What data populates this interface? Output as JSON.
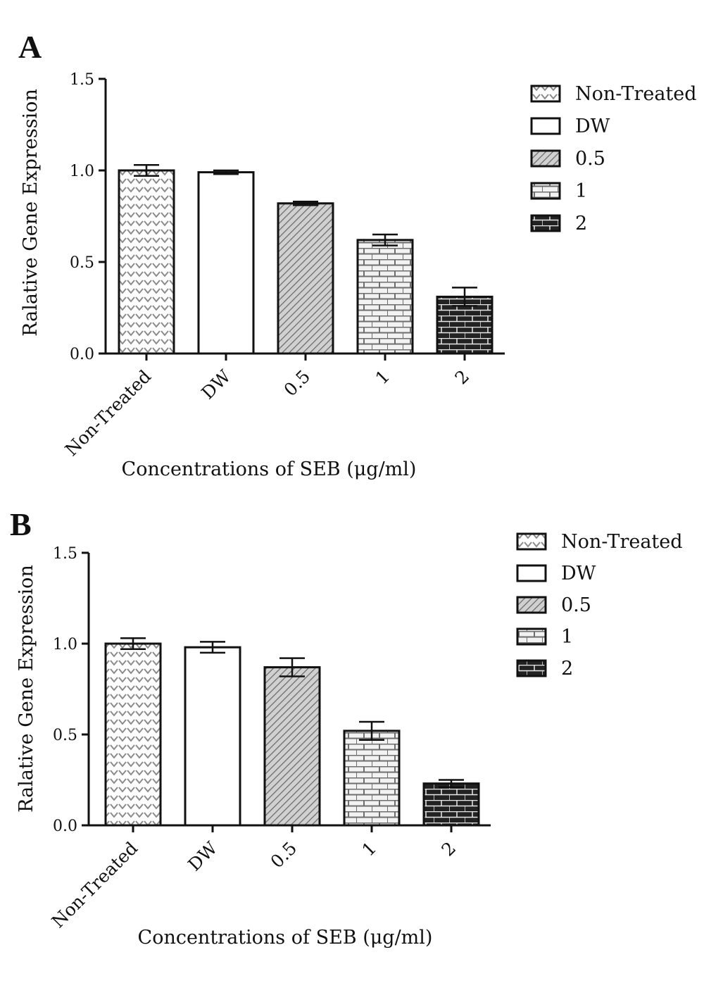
{
  "chart_data": [
    {
      "type": "bar",
      "panel_label": "A",
      "categories": [
        "Non-Treated",
        "DW",
        "0.5",
        "1",
        "2"
      ],
      "values": [
        1.0,
        0.99,
        0.82,
        0.62,
        0.31
      ],
      "errors": [
        0.03,
        0.01,
        0.01,
        0.03,
        0.05
      ],
      "xlabel": "Concentrations of SEB (μg/ml)",
      "ylabel": "Ralative Gene Expression",
      "ylim": [
        0,
        1.5
      ],
      "yticks": [
        "0.0",
        "0.5",
        "1.0",
        "1.5"
      ],
      "legend": [
        "Non-Treated",
        "DW",
        "0.5",
        "1",
        "2"
      ],
      "legend_position": "top-right",
      "grid": false
    },
    {
      "type": "bar",
      "panel_label": "B",
      "categories": [
        "Non-Treated",
        "DW",
        "0.5",
        "1",
        "2"
      ],
      "values": [
        1.0,
        0.98,
        0.87,
        0.52,
        0.23
      ],
      "errors": [
        0.03,
        0.03,
        0.05,
        0.05,
        0.02
      ],
      "xlabel": "Concentrations of SEB (μg/ml)",
      "ylabel": "Ralative Gene Expression",
      "ylim": [
        0,
        1.5
      ],
      "yticks": [
        "0.0",
        "0.5",
        "1.0",
        "1.5"
      ],
      "legend": [
        "Non-Treated",
        "DW",
        "0.5",
        "1",
        "2"
      ],
      "legend_position": "top-right",
      "grid": false
    }
  ]
}
